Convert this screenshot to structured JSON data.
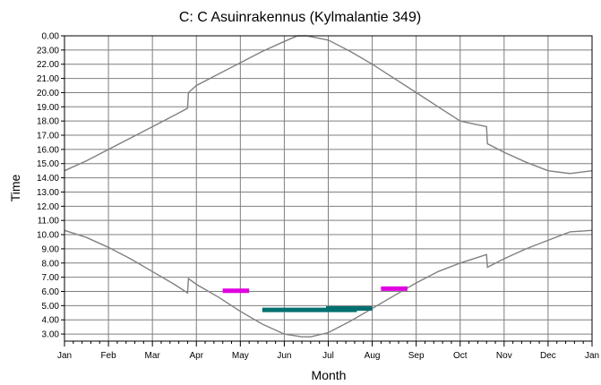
{
  "chart_data": {
    "type": "line",
    "title": "C: C Asuinrakennus (Kylmalantie 349)",
    "xlabel": "Month",
    "ylabel": "Time",
    "x_ticks": [
      "Jan",
      "Feb",
      "Mar",
      "Apr",
      "May",
      "Jun",
      "Jul",
      "Aug",
      "Sep",
      "Oct",
      "Nov",
      "Dec",
      "Jan"
    ],
    "y_ticks": [
      "3.00",
      "4.00",
      "5.00",
      "6.00",
      "7.00",
      "8.00",
      "9.00",
      "10.00",
      "11.00",
      "12.00",
      "13.00",
      "14.00",
      "15.00",
      "16.00",
      "17.00",
      "18.00",
      "19.00",
      "20.00",
      "21.00",
      "22.00",
      "23.00",
      "0.00"
    ],
    "ylim": [
      2.5,
      24
    ],
    "xlim": [
      0,
      12
    ],
    "grid": true,
    "colors": {
      "curve": "#808080",
      "grid": "#7f7f7f",
      "magenta": "#e000e0",
      "teal": "#007070"
    },
    "series": [
      {
        "x": [
          0,
          0.5,
          1,
          1.5,
          2,
          2.5,
          2.8,
          2.82,
          3,
          3.5,
          4,
          4.5,
          5,
          5.3,
          5.5,
          6,
          6.5,
          7,
          7.5,
          8,
          8.5,
          9,
          9.6,
          9.62,
          10,
          10.5,
          11,
          11.5,
          12
        ],
        "values": [
          14.5,
          15.2,
          16.0,
          16.8,
          17.6,
          18.4,
          18.9,
          20.0,
          20.5,
          21.3,
          22.1,
          22.9,
          23.6,
          24.0,
          24.0,
          23.7,
          22.9,
          22.0,
          21.0,
          20.0,
          19.0,
          18.0,
          17.6,
          16.4,
          15.8,
          15.1,
          14.5,
          14.3,
          14.5
        ]
      },
      {
        "x": [
          0,
          0.5,
          1,
          1.5,
          2,
          2.5,
          2.8,
          2.82,
          3,
          3.5,
          4,
          4.5,
          5,
          5.4,
          5.6,
          6,
          6.5,
          7,
          7.5,
          8,
          8.5,
          9,
          9.6,
          9.62,
          10,
          10.5,
          11,
          11.5,
          12
        ],
        "values": [
          10.3,
          9.8,
          9.1,
          8.3,
          7.4,
          6.5,
          5.9,
          6.9,
          6.5,
          5.6,
          4.6,
          3.7,
          3.0,
          2.8,
          2.8,
          3.1,
          3.9,
          4.8,
          5.7,
          6.6,
          7.4,
          8.0,
          8.6,
          7.7,
          8.3,
          9.0,
          9.6,
          10.2,
          10.3
        ]
      }
    ],
    "markers": [
      {
        "color": "magenta",
        "x_start": 3.65,
        "x_end": 4.15,
        "y": 6.05
      },
      {
        "color": "magenta",
        "x_start": 7.25,
        "x_end": 7.75,
        "y": 6.2
      },
      {
        "color": "teal",
        "x_start": 4.55,
        "x_end": 6.6,
        "y": 4.7
      },
      {
        "color": "teal",
        "x_start": 6.0,
        "x_end": 6.95,
        "y": 4.8
      }
    ]
  }
}
